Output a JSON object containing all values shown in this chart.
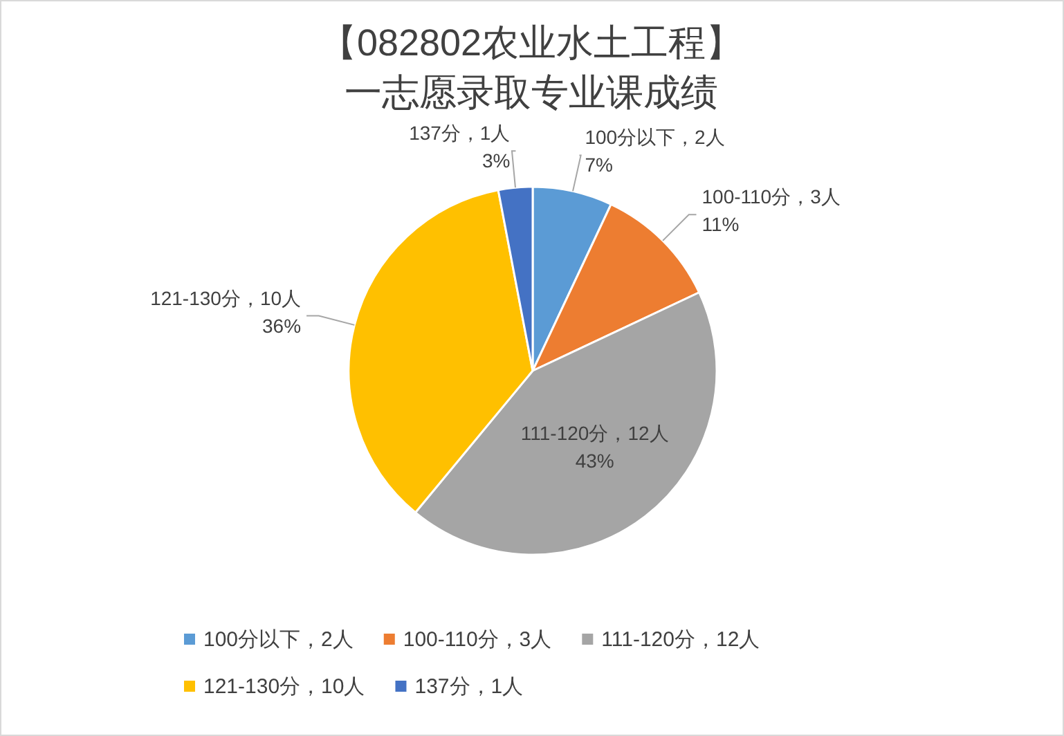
{
  "chart_data": {
    "type": "pie",
    "title": "【082802农业水土工程】",
    "subtitle": "一志愿录取专业课成绩",
    "categories": [
      "100分以下，2人",
      "100-110分，3人",
      "111-120分，12人",
      "121-130分，10人",
      "137分，1人"
    ],
    "values": [
      7,
      11,
      43,
      36,
      3
    ],
    "colors": [
      "#5b9bd5",
      "#ed7d31",
      "#a5a5a5",
      "#ffc000",
      "#4472c4"
    ],
    "value_labels": [
      "7%",
      "11%",
      "43%",
      "36%",
      "3%"
    ],
    "legend": "bottom"
  }
}
